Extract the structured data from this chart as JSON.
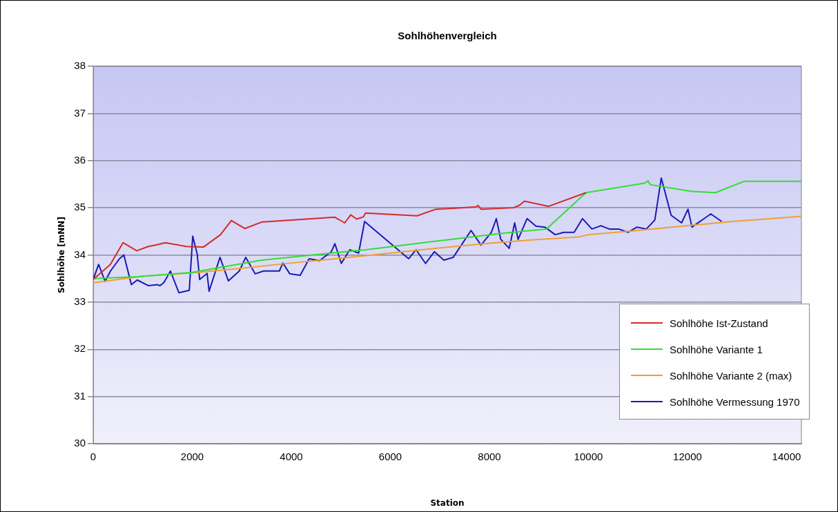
{
  "chart_data": {
    "type": "line",
    "title": "Sohlhöhenvergleich",
    "xlabel": "Station",
    "ylabel": "Sohlhöhe [mNN]",
    "xlim": [
      0,
      14300
    ],
    "xticks": [
      0,
      2000,
      4000,
      6000,
      8000,
      10000,
      12000,
      14000
    ],
    "ylim": [
      30,
      38
    ],
    "yticks": [
      30,
      31,
      32,
      33,
      34,
      35,
      36,
      37,
      38
    ],
    "grid": "y",
    "legend": "bottom right",
    "marker": "none",
    "line_style": "solid",
    "series": [
      {
        "name": "Sohlhöhe Ist-Zustand",
        "color": "#d42a2a",
        "x": [
          0,
          347,
          602,
          878,
          1113,
          1297,
          1460,
          1880,
          2230,
          2570,
          2790,
          3060,
          3410,
          4880,
          5080,
          5200,
          5320,
          5460,
          5500,
          6540,
          6920,
          7310,
          7730,
          7770,
          7830,
          8480,
          8600,
          8710,
          9190,
          9950
        ],
        "values": [
          33.48,
          33.8,
          34.26,
          34.09,
          34.18,
          34.22,
          34.26,
          34.18,
          34.17,
          34.43,
          34.73,
          34.56,
          34.7,
          34.8,
          34.68,
          34.85,
          34.76,
          34.81,
          34.89,
          34.83,
          34.97,
          34.99,
          35.02,
          35.05,
          34.97,
          35.0,
          35.05,
          35.14,
          35.03,
          35.32
        ]
      },
      {
        "name": "Sohlhöhe Variante 1",
        "color": "#33dd33",
        "x": [
          0,
          900,
          2000,
          3400,
          4810,
          5500,
          6890,
          8280,
          9150,
          9950,
          11130,
          11200,
          11250,
          12070,
          12560,
          13140,
          14300
        ],
        "values": [
          33.5,
          33.54,
          33.63,
          33.89,
          34.04,
          34.11,
          34.29,
          34.46,
          34.55,
          35.32,
          35.52,
          35.57,
          35.49,
          35.35,
          35.32,
          35.56,
          35.56
        ]
      },
      {
        "name": "Sohlhöhe Variante 2 (max)",
        "color": "#f0a030",
        "x": [
          0,
          1000,
          2000,
          3000,
          4000,
          5000,
          6000,
          7000,
          8000,
          9000,
          9800,
          10000,
          11000,
          12000,
          12900,
          14300
        ],
        "values": [
          33.41,
          33.55,
          33.62,
          33.72,
          33.83,
          33.93,
          34.04,
          34.15,
          34.25,
          34.33,
          34.38,
          34.43,
          34.52,
          34.62,
          34.71,
          34.82
        ]
      },
      {
        "name": "Sohlhöhe Vermessung 1970",
        "color": "#1a1ab4",
        "x": [
          0,
          110,
          240,
          350,
          530,
          620,
          770,
          890,
          1110,
          1300,
          1350,
          1430,
          1560,
          1730,
          1940,
          2010,
          2100,
          2150,
          2300,
          2340,
          2560,
          2730,
          2950,
          3080,
          3270,
          3440,
          3760,
          3830,
          3970,
          4180,
          4360,
          4570,
          4810,
          4880,
          5010,
          5180,
          5360,
          5480,
          6370,
          6520,
          6710,
          6890,
          7080,
          7270,
          7630,
          7830,
          8040,
          8140,
          8230,
          8400,
          8510,
          8580,
          8760,
          8940,
          9120,
          9330,
          9500,
          9710,
          9880,
          10070,
          10250,
          10420,
          10610,
          10800,
          10980,
          11170,
          11340,
          11470,
          11670,
          11880,
          12010,
          12090,
          12470,
          12690
        ],
        "values": [
          33.48,
          33.8,
          33.44,
          33.66,
          33.92,
          34.0,
          33.37,
          33.47,
          33.35,
          33.37,
          33.35,
          33.42,
          33.66,
          33.2,
          33.25,
          34.4,
          34.02,
          33.48,
          33.61,
          33.23,
          33.95,
          33.45,
          33.66,
          33.95,
          33.6,
          33.66,
          33.66,
          33.83,
          33.6,
          33.57,
          33.92,
          33.88,
          34.07,
          34.24,
          33.82,
          34.11,
          34.04,
          34.71,
          33.92,
          34.11,
          33.82,
          34.07,
          33.89,
          33.95,
          34.52,
          34.21,
          34.48,
          34.77,
          34.33,
          34.14,
          34.68,
          34.33,
          34.77,
          34.61,
          34.59,
          34.43,
          34.48,
          34.48,
          34.77,
          34.55,
          34.62,
          34.55,
          34.55,
          34.48,
          34.59,
          34.55,
          34.74,
          35.63,
          34.84,
          34.68,
          34.97,
          34.59,
          34.87,
          34.71
        ]
      }
    ]
  }
}
